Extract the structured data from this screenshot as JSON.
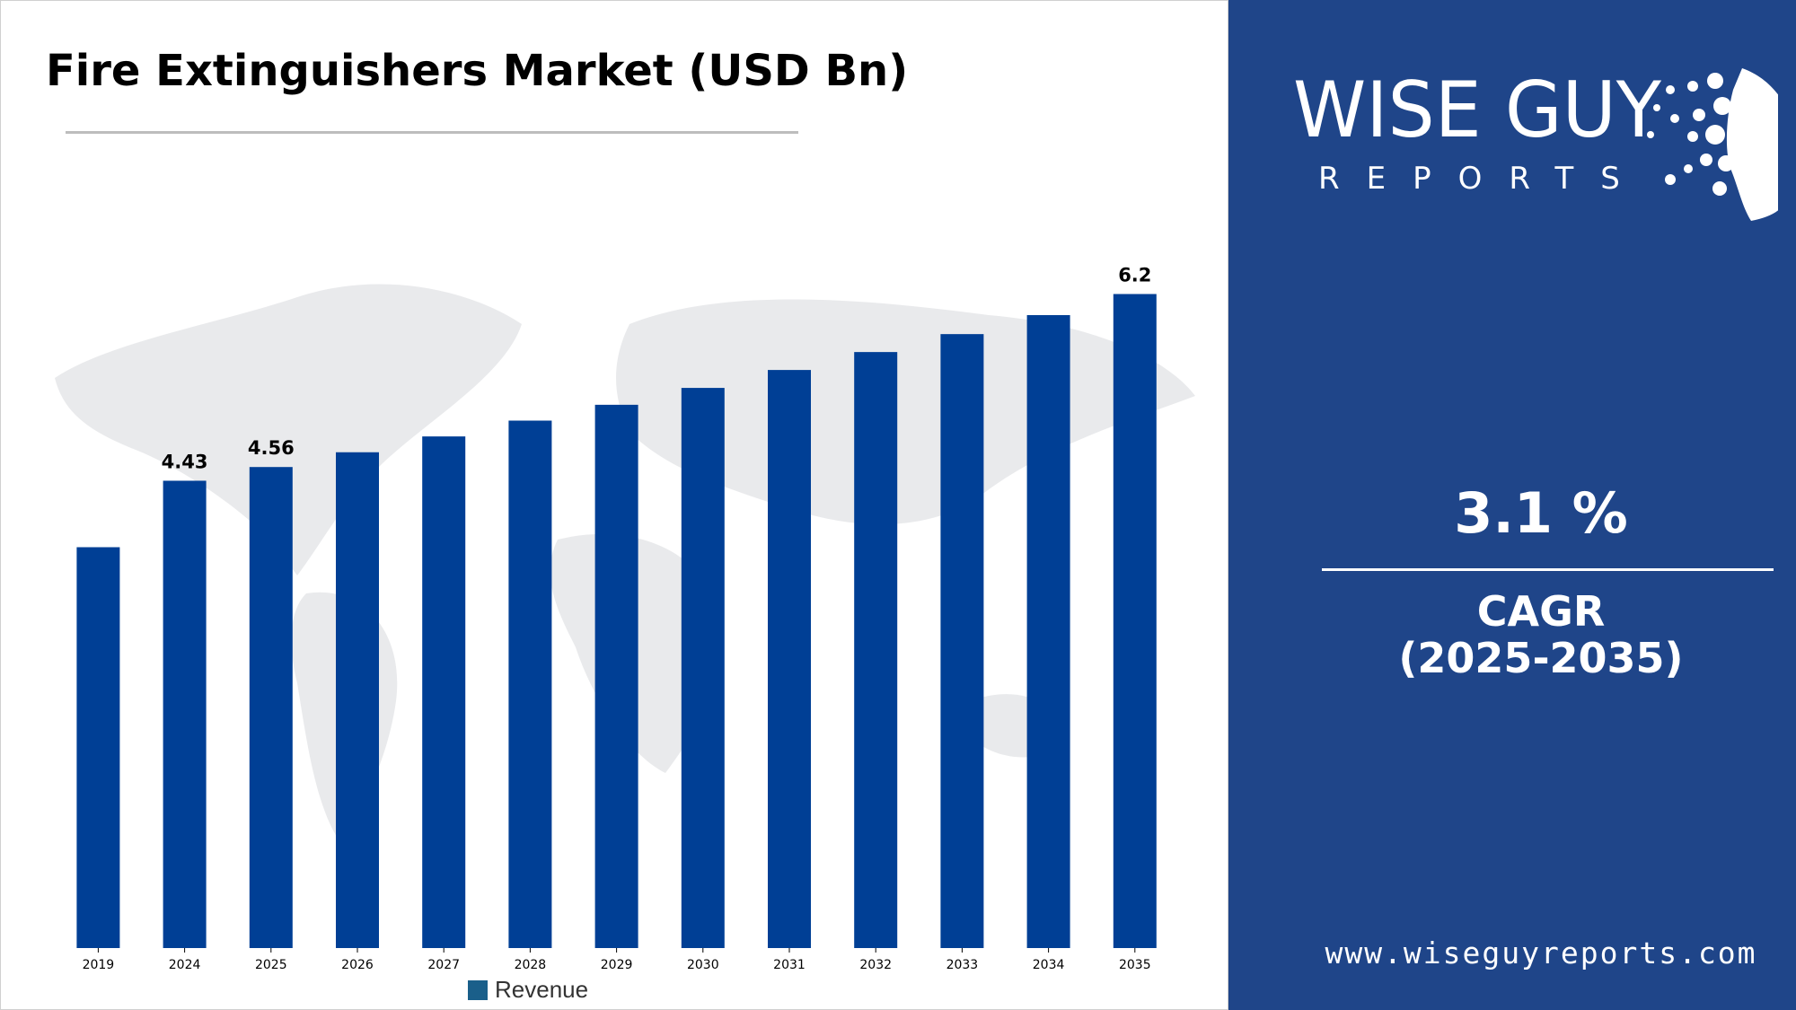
{
  "title": "Fire Extinguishers Market (USD Bn)",
  "chart_data": {
    "type": "bar",
    "title": "Fire Extinguishers Market (USD Bn)",
    "categories": [
      "2019",
      "2024",
      "2025",
      "2026",
      "2027",
      "2028",
      "2029",
      "2030",
      "2031",
      "2032",
      "2033",
      "2034",
      "2035"
    ],
    "series": [
      {
        "name": "Revenue",
        "values": [
          3.8,
          4.43,
          4.56,
          4.7,
          4.85,
          5.0,
          5.15,
          5.31,
          5.48,
          5.65,
          5.82,
          6.0,
          6.2
        ]
      }
    ],
    "data_labels": {
      "2024": "4.43",
      "2025": "4.56",
      "2035": "6.2"
    },
    "xlabel": "",
    "ylabel": "",
    "ylim": [
      0,
      6.2
    ],
    "bar_color": "#003f95",
    "legend_color": "#1a5f8a",
    "grid": false,
    "legend_position": "bottom-center"
  },
  "sidebar": {
    "logo_main": "WISE GUY",
    "logo_sub": "REPORTS",
    "cagr_value": "3.1 %",
    "cagr_label_line1": "CAGR",
    "cagr_label_line2": "(2025-2035)",
    "url": "www.wiseguyreports.com",
    "background_color": "#1f4589"
  }
}
